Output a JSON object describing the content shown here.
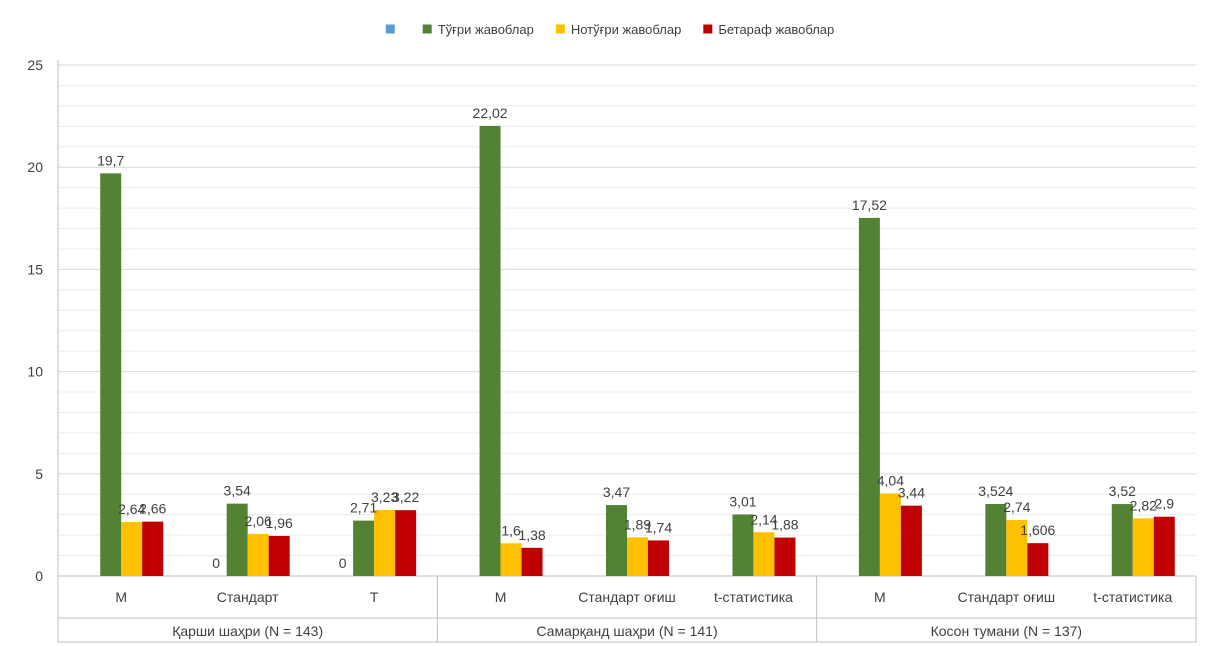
{
  "chart_data": {
    "type": "bar",
    "ylim": [
      0,
      25
    ],
    "yticks": [
      0,
      5,
      10,
      15,
      20,
      25
    ],
    "grid": true,
    "legend_position": "top",
    "groups": [
      {
        "label": "Қарши шаҳри (N = 143)",
        "categories": [
          "M",
          "Стандарт",
          "T"
        ]
      },
      {
        "label": "Самарқанд шаҳри (N = 141)",
        "categories": [
          "M",
          "Стандарт оғиш",
          "t-статистика"
        ]
      },
      {
        "label": "Косон тумани (N = 137)",
        "categories": [
          "M",
          "Стандарт оғиш",
          "t-статистика"
        ]
      }
    ],
    "series": [
      {
        "name": "",
        "color": "#5B9BD5",
        "values": [
          null,
          0,
          0,
          null,
          null,
          null,
          null,
          null,
          null
        ],
        "labels": [
          "",
          "0",
          "0",
          "",
          "",
          "",
          "",
          "",
          ""
        ]
      },
      {
        "name": "Тўғри жавоблар",
        "color": "#548235",
        "values": [
          19.7,
          3.54,
          2.71,
          22.02,
          3.47,
          3.01,
          17.52,
          3.524,
          3.52
        ],
        "labels": [
          "19,7",
          "3,54",
          "2,71",
          "22,02",
          "3,47",
          "3,01",
          "17,52",
          "3,524",
          "3,52"
        ]
      },
      {
        "name": "Нотўғри жавоблар",
        "color": "#FFC000",
        "values": [
          2.64,
          2.06,
          3.23,
          1.6,
          1.89,
          2.14,
          4.04,
          2.74,
          2.82
        ],
        "labels": [
          "2,64",
          "2,06",
          "3,23",
          "1,6",
          "1,89",
          "2,14",
          "4,04",
          "2,74",
          "2,82"
        ]
      },
      {
        "name": "Бетараф жавоблар",
        "color": "#C00000",
        "values": [
          2.66,
          1.96,
          3.22,
          1.38,
          1.74,
          1.88,
          3.44,
          1.606,
          2.9
        ],
        "labels": [
          "2,66",
          "1,96",
          "3,22",
          "1,38",
          "1,74",
          "1,88",
          "3,44",
          "1,606",
          "2,9"
        ]
      }
    ]
  }
}
